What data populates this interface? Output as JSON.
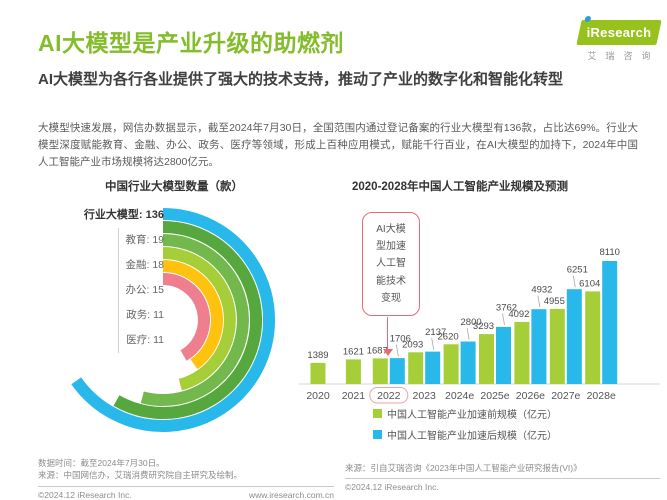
{
  "header": {
    "title": "AI大模型是产业升级的助燃剂",
    "subtitle": "AI大模型为各行各业提供了强大的技术支持，推动了产业的数字化和智能化转型",
    "body": "大模型快速发展，网信办数据显示，截至2024年7月30日，全国范围内通过登记备案的行业大模型有136款，占比达69%。行业大模型深度赋能教育、金融、办公、政务、医疗等领域，形成上百种应用模式，赋能千行百业，在AI大模型的加持下，2024年中国人工智能产业市场规模将达2800亿元。"
  },
  "logo": {
    "brand": "iResearch",
    "brand_cn": "艾瑞咨询"
  },
  "colors": {
    "title_green": "#84BD2C",
    "logo_green": "#97C21E",
    "bar_green": "#A5CE39",
    "bar_blue": "#29B8EA",
    "callout_pink": "#E96A76",
    "highlight_pink": "#F0A0A6"
  },
  "chart_data": [
    {
      "type": "pie",
      "variant": "radial-arc-rings",
      "title": "中国行业大模型数量（款）",
      "total": {
        "label": "行业大模型",
        "value": 136
      },
      "items": [
        {
          "label": "教育",
          "value": 19
        },
        {
          "label": "金融",
          "value": 18
        },
        {
          "label": "办公",
          "value": 15
        },
        {
          "label": "政务",
          "value": 11
        },
        {
          "label": "医疗",
          "value": 11
        }
      ],
      "rings": [
        {
          "label": "行业大模型",
          "value": 136,
          "color": "#29B8EA",
          "sweep": 235
        },
        {
          "label": "教育",
          "value": 19,
          "color": "#57A73F",
          "sweep": 210
        },
        {
          "label": "金融",
          "value": 18,
          "color": "#72B84D",
          "sweep": 195
        },
        {
          "label": "办公",
          "value": 15,
          "color": "#A5CE39",
          "sweep": 165
        },
        {
          "label": "政务",
          "value": 11,
          "color": "#FFC20E",
          "sweep": 145
        },
        {
          "label": "医疗",
          "value": 11,
          "color": "#EF7E8E",
          "sweep": 150
        }
      ]
    },
    {
      "type": "bar",
      "title": "2020-2028年中国人工智能产业规模及预测",
      "categories": [
        "2020",
        "2021",
        "2022",
        "2023",
        "2024e",
        "2025e",
        "2026e",
        "2027e",
        "2028e"
      ],
      "series": [
        {
          "name": "中国人工智能产业加速前规模（亿元）",
          "color": "#A5CE39",
          "values": [
            1389,
            1621,
            1687,
            2093,
            2620,
            3293,
            4092,
            4955,
            6104
          ]
        },
        {
          "name": "中国人工智能产业加速后规模（亿元）",
          "color": "#29B8EA",
          "values": [
            null,
            null,
            1706,
            2137,
            2800,
            3762,
            4932,
            6251,
            8110
          ]
        }
      ],
      "ylim": [
        0,
        8110
      ],
      "unit": "亿元",
      "grid": false,
      "legend_position": "bottom",
      "highlight_category": "2022",
      "annotation": {
        "text": "AI大模型加速人工智能技术变现",
        "lines": [
          "AI大模",
          "型加速",
          "人工智",
          "能技术",
          "变现"
        ],
        "target": "2022"
      }
    }
  ],
  "footer": {
    "left": {
      "line1": "数据时间：截至2024年7月30日。",
      "line2": "来源：中国网信办，艾瑞消费研究院自主研究及绘制。",
      "copyright": "©2024.12 iResearch Inc.",
      "site": "www.iresearch.com.cn"
    },
    "right": {
      "line1": "来源：引自艾瑞咨询《2023年中国人工智能产业研究报告(VI)》",
      "copyright": "©2024.12 iResearch Inc."
    }
  }
}
